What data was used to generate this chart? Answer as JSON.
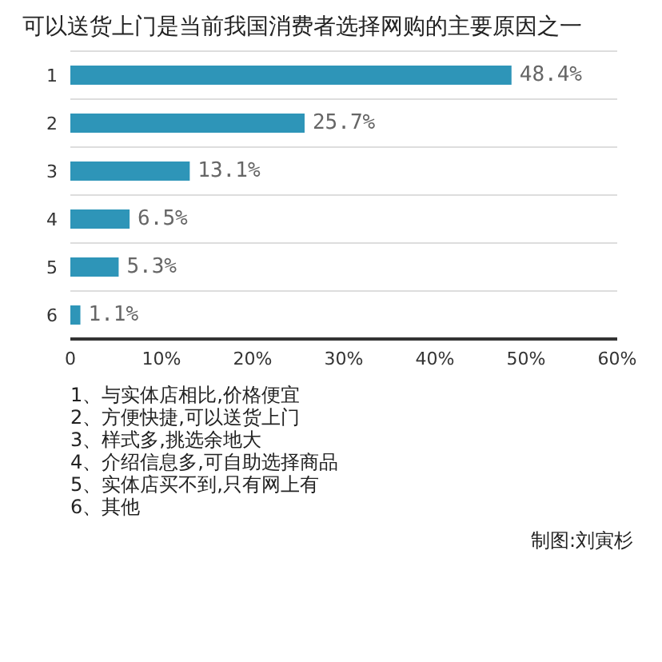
{
  "chart_data": {
    "type": "bar",
    "orientation": "horizontal",
    "title": "可以送货上门是当前我国消费者选择网购的主要原因之一",
    "categories": [
      "1",
      "2",
      "3",
      "4",
      "5",
      "6"
    ],
    "values": [
      48.4,
      25.7,
      13.1,
      6.5,
      5.3,
      1.1
    ],
    "value_labels": [
      "48.4%",
      "25.7%",
      "13.1%",
      "6.5%",
      "5.3%",
      "1.1%"
    ],
    "color": "#2e95b8",
    "xlim": [
      0,
      60
    ],
    "xticks": [
      0,
      {
        "value": 10,
        "label": "10%"
      },
      {
        "value": 20,
        "label": "20%"
      },
      {
        "value": 30,
        "label": "30%"
      },
      {
        "value": 40,
        "label": "40%"
      },
      {
        "value": 50,
        "label": "50%"
      },
      {
        "value": 60,
        "label": "60%"
      }
    ],
    "grid": "y",
    "annotations": [
      "1、与实体店相比,价格便宜",
      "2、方便快捷,可以送货上门",
      "3、样式多,挑选余地大",
      "4、介绍信息多,可自助选择商品",
      "5、实体店买不到,只有网上有",
      "6、其他",
      "制图:刘寅杉"
    ]
  }
}
